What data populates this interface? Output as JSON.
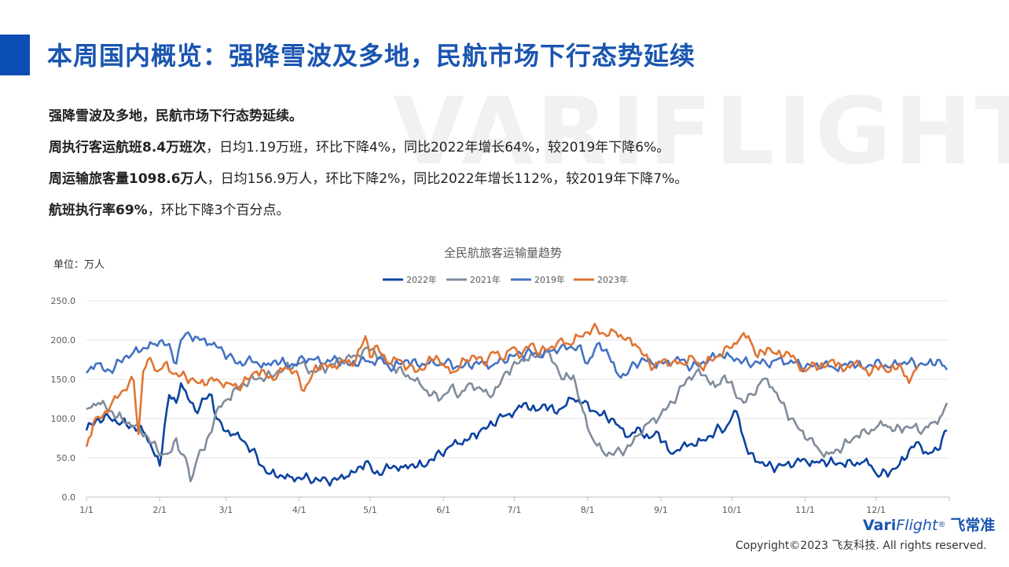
{
  "header": {
    "title": "本周国内概览：强降雪波及多地，民航市场下行态势延续",
    "watermark": "VARIFLIGHT"
  },
  "summary": {
    "line1": "强降雪波及多地，民航市场下行态势延续。",
    "line2_bold": "周执行客运航班8.4万班次",
    "line2_rest": "，日均1.19万班，环比下降4%，同比2022年增长64%，较2019年下降6%。",
    "line3_bold": "周运输旅客量1098.6万人",
    "line3_rest": "，日均156.9万人，环比下降2%，同比2022年增长112%，较2019年下降7%。",
    "line4_bold": "航班执行率69%",
    "line4_rest": "，环比下降3个百分点。"
  },
  "chart_data": {
    "type": "line",
    "title": "全民航旅客运输量趋势",
    "unit": "单位：万人",
    "ylim": [
      0,
      250
    ],
    "yticks": [
      "0.0",
      "50.0",
      "100.0",
      "150.0",
      "200.0",
      "250.0"
    ],
    "xticks": [
      "1/1",
      "2/1",
      "3/1",
      "4/1",
      "5/1",
      "6/1",
      "7/1",
      "8/1",
      "9/1",
      "10/1",
      "11/1",
      "12/1"
    ],
    "xtick_days": [
      0,
      31,
      59,
      90,
      120,
      151,
      181,
      212,
      243,
      273,
      304,
      334
    ],
    "x_days": 365,
    "grid": "horizontal",
    "legend_position": "top",
    "series": [
      {
        "name": "2022年",
        "color": "#0b43a0",
        "days": [
          0,
          5,
          10,
          15,
          20,
          25,
          28,
          31,
          33,
          35,
          38,
          40,
          43,
          46,
          50,
          53,
          55,
          58,
          62,
          66,
          70,
          74,
          78,
          82,
          86,
          90,
          94,
          98,
          102,
          106,
          110,
          114,
          118,
          122,
          126,
          130,
          134,
          138,
          142,
          146,
          150,
          154,
          158,
          162,
          166,
          170,
          174,
          178,
          182,
          186,
          190,
          194,
          198,
          202,
          206,
          210,
          214,
          218,
          222,
          226,
          230,
          234,
          238,
          242,
          246,
          248,
          250,
          252,
          256,
          260,
          264,
          268,
          270,
          272,
          274,
          276,
          278,
          280,
          284,
          288,
          292,
          296,
          300,
          304,
          308,
          312,
          316,
          320,
          324,
          328,
          332,
          334,
          336,
          340,
          344,
          348,
          352,
          356,
          360,
          362,
          364
        ],
        "values": [
          85,
          100,
          100,
          95,
          90,
          80,
          60,
          40,
          90,
          130,
          120,
          145,
          125,
          110,
          125,
          130,
          100,
          85,
          80,
          72,
          60,
          40,
          30,
          28,
          26,
          25,
          24,
          22,
          20,
          22,
          26,
          32,
          45,
          30,
          35,
          40,
          38,
          42,
          40,
          48,
          55,
          65,
          68,
          74,
          82,
          90,
          100,
          105,
          112,
          120,
          110,
          118,
          108,
          115,
          125,
          120,
          110,
          105,
          100,
          88,
          78,
          88,
          75,
          82,
          60,
          55,
          60,
          65,
          68,
          72,
          78,
          88,
          85,
          95,
          110,
          100,
          75,
          55,
          45,
          40,
          38,
          42,
          45,
          48,
          44,
          46,
          44,
          42,
          42,
          44,
          40,
          30,
          28,
          32,
          42,
          60,
          70,
          55,
          60,
          75,
          85
        ]
      },
      {
        "name": "2021年",
        "color": "#7f8c9c",
        "days": [
          0,
          5,
          10,
          15,
          20,
          25,
          30,
          33,
          36,
          38,
          40,
          42,
          44,
          46,
          48,
          50,
          52,
          55,
          60,
          66,
          72,
          78,
          84,
          90,
          96,
          102,
          108,
          114,
          118,
          122,
          126,
          130,
          134,
          138,
          142,
          146,
          150,
          154,
          158,
          162,
          166,
          170,
          174,
          178,
          182,
          186,
          190,
          194,
          198,
          202,
          206,
          210,
          214,
          218,
          222,
          226,
          230,
          234,
          238,
          242,
          246,
          250,
          254,
          258,
          262,
          266,
          270,
          274,
          278,
          282,
          286,
          290,
          294,
          298,
          302,
          306,
          310,
          314,
          318,
          322,
          326,
          330,
          334,
          338,
          342,
          346,
          350,
          354,
          358,
          362,
          364
        ],
        "values": [
          112,
          120,
          110,
          100,
          90,
          80,
          60,
          55,
          58,
          75,
          55,
          50,
          20,
          40,
          60,
          60,
          80,
          110,
          125,
          145,
          150,
          155,
          165,
          170,
          160,
          165,
          175,
          180,
          190,
          185,
          175,
          165,
          158,
          150,
          140,
          130,
          125,
          140,
          130,
          145,
          140,
          130,
          140,
          160,
          170,
          175,
          178,
          185,
          170,
          150,
          155,
          110,
          75,
          60,
          55,
          58,
          65,
          80,
          95,
          100,
          115,
          130,
          150,
          160,
          155,
          140,
          155,
          135,
          120,
          130,
          150,
          140,
          120,
          100,
          85,
          75,
          60,
          55,
          60,
          70,
          78,
          82,
          88,
          92,
          85,
          88,
          90,
          85,
          95,
          105,
          120
        ]
      },
      {
        "name": "2019年",
        "color": "#4472c4",
        "days": [
          0,
          4,
          8,
          12,
          16,
          20,
          24,
          28,
          32,
          36,
          38,
          40,
          42,
          44,
          48,
          52,
          56,
          60,
          64,
          68,
          72,
          76,
          80,
          84,
          88,
          92,
          96,
          100,
          104,
          108,
          112,
          116,
          120,
          124,
          128,
          132,
          136,
          140,
          144,
          148,
          152,
          156,
          160,
          164,
          168,
          172,
          176,
          180,
          184,
          188,
          192,
          196,
          200,
          204,
          208,
          212,
          216,
          220,
          224,
          228,
          232,
          236,
          240,
          244,
          248,
          252,
          256,
          260,
          264,
          268,
          272,
          276,
          280,
          284,
          288,
          292,
          296,
          300,
          304,
          308,
          312,
          316,
          320,
          324,
          328,
          332,
          336,
          340,
          344,
          348,
          352,
          356,
          360,
          364
        ],
        "values": [
          158,
          170,
          160,
          165,
          178,
          185,
          190,
          195,
          200,
          185,
          170,
          200,
          208,
          205,
          200,
          195,
          190,
          180,
          170,
          175,
          172,
          168,
          174,
          170,
          168,
          176,
          175,
          170,
          175,
          172,
          168,
          175,
          172,
          178,
          165,
          170,
          174,
          168,
          170,
          168,
          172,
          165,
          168,
          170,
          172,
          168,
          175,
          180,
          182,
          185,
          178,
          186,
          188,
          190,
          192,
          170,
          195,
          188,
          160,
          155,
          170,
          175,
          168,
          170,
          172,
          175,
          165,
          170,
          178,
          182,
          180,
          175,
          170,
          172,
          168,
          175,
          170,
          172,
          165,
          168,
          170,
          165,
          168,
          172,
          165,
          168,
          170,
          165,
          170,
          172,
          168,
          170,
          175,
          162
        ]
      },
      {
        "name": "2023年",
        "color": "#e07534",
        "days": [
          0,
          3,
          6,
          10,
          14,
          18,
          20,
          22,
          24,
          26,
          28,
          30,
          33,
          36,
          40,
          44,
          48,
          52,
          56,
          60,
          64,
          68,
          72,
          76,
          80,
          84,
          88,
          92,
          96,
          100,
          104,
          108,
          112,
          116,
          118,
          120,
          122,
          124,
          128,
          132,
          136,
          140,
          144,
          148,
          152,
          156,
          160,
          164,
          168,
          172,
          176,
          180,
          184,
          188,
          192,
          196,
          200,
          204,
          208,
          212,
          216,
          220,
          224,
          228,
          232,
          236,
          240,
          244,
          248,
          252,
          256,
          260,
          264,
          268,
          272,
          276,
          280,
          284,
          288,
          292,
          296,
          300,
          304,
          308,
          312,
          316,
          320,
          324,
          328,
          332,
          336,
          340,
          344,
          348,
          350,
          352
        ],
        "values": [
          64,
          95,
          100,
          115,
          130,
          145,
          148,
          80,
          160,
          175,
          170,
          160,
          170,
          158,
          155,
          150,
          145,
          150,
          148,
          145,
          140,
          150,
          160,
          155,
          150,
          165,
          160,
          135,
          160,
          170,
          165,
          175,
          168,
          190,
          205,
          178,
          192,
          185,
          170,
          175,
          165,
          160,
          170,
          180,
          165,
          160,
          175,
          180,
          170,
          185,
          175,
          190,
          180,
          195,
          185,
          190,
          200,
          195,
          205,
          210,
          215,
          205,
          210,
          200,
          195,
          180,
          165,
          175,
          172,
          170,
          180,
          165,
          175,
          180,
          190,
          200,
          205,
          178,
          190,
          182,
          185,
          175,
          160,
          170,
          165,
          175,
          160,
          170,
          165,
          158,
          168,
          160,
          170,
          145,
          160,
          168
        ]
      }
    ]
  },
  "footer": {
    "logo_en_vari": "Vari",
    "logo_en_flight": "Flight",
    "logo_reg": "®",
    "logo_cn": "飞常准",
    "copyright": "Copyright©2023 飞友科技. All rights reserved."
  }
}
